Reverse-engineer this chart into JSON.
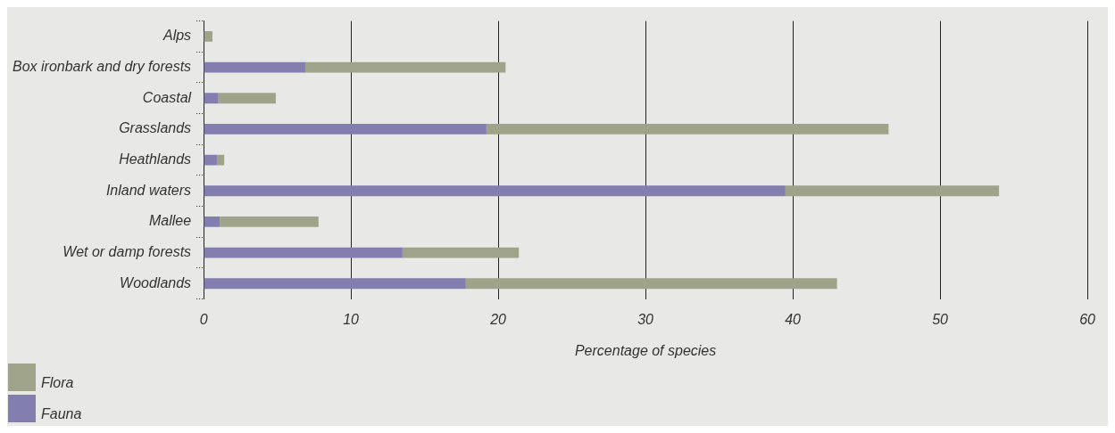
{
  "chart_data": {
    "type": "bar",
    "orientation": "horizontal",
    "stacked": true,
    "xlabel": "Percentage of species",
    "categories": [
      "Alps",
      "Box ironbark and dry forests",
      "Coastal",
      "Grasslands",
      "Heathlands",
      "Inland waters",
      "Mallee",
      "Wet or damp forests",
      "Woodlands"
    ],
    "series": [
      {
        "name": "Fauna",
        "color": "#837eb0",
        "values": [
          0,
          6.9,
          1.0,
          19.2,
          0.9,
          39.5,
          1.1,
          13.5,
          17.8
        ]
      },
      {
        "name": "Flora",
        "color": "#9ea38a",
        "values": [
          0.6,
          13.6,
          3.9,
          27.3,
          0.5,
          14.5,
          6.7,
          7.9,
          25.2
        ]
      }
    ],
    "xlim": [
      0,
      60
    ],
    "xticks": [
      0,
      10,
      20,
      30,
      40,
      50,
      60
    ],
    "grid": "x",
    "legend": "bottom left"
  }
}
